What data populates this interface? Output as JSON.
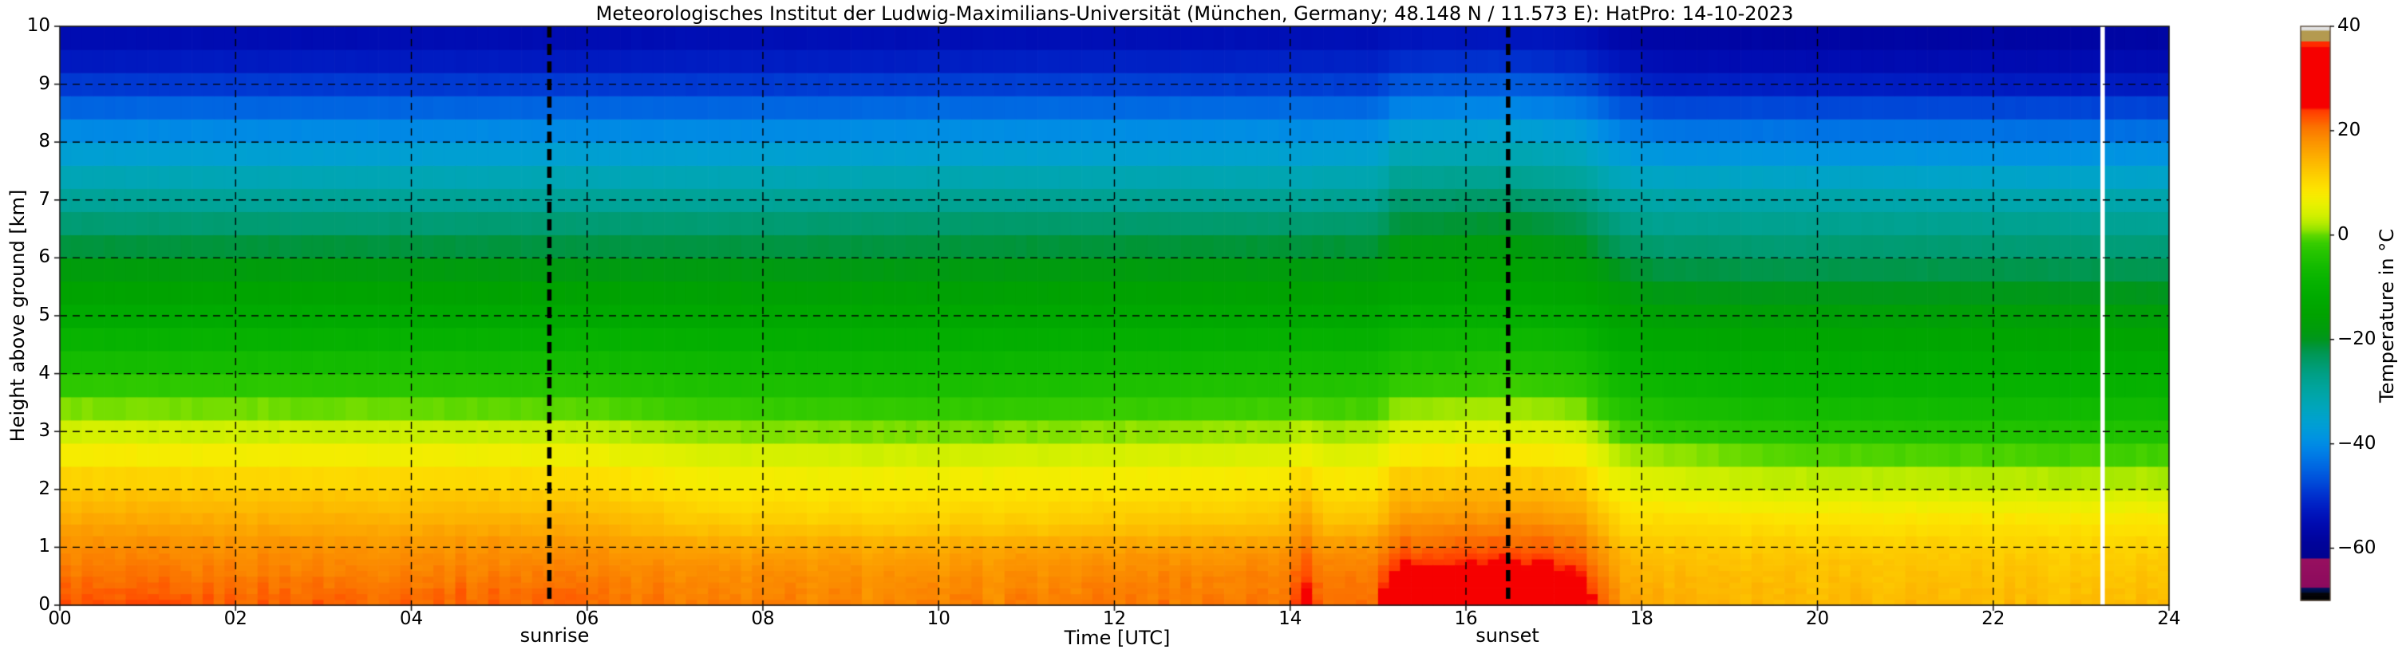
{
  "figure": {
    "title": "Meteorologisches Institut der Ludwig-Maximilians-Universität (München, Germany; 48.148 N / 11.573 E):    HatPro: 14-10-2023"
  },
  "chart_data": {
    "type": "heatmap",
    "title": "Meteorologisches Institut der Ludwig-Maximilians-Universität (München, Germany; 48.148 N / 11.573 E):    HatPro: 14-10-2023",
    "xlabel": "Time [UTC]",
    "ylabel": "Height above ground [km]",
    "colorbar_label": "Temperature in  °C",
    "x_range_hours": [
      0,
      24
    ],
    "y_range_km": [
      0,
      10
    ],
    "temp_range_c": [
      -70,
      40
    ],
    "grid_on": true,
    "x_tick_values": [
      0,
      2,
      4,
      6,
      8,
      10,
      12,
      14,
      16,
      18,
      20,
      22,
      24
    ],
    "x_tick_labels": [
      "00",
      "02",
      "04",
      "06",
      "08",
      "10",
      "12",
      "14",
      "16",
      "18",
      "20",
      "22",
      "24"
    ],
    "y_tick_values": [
      0,
      1,
      2,
      3,
      4,
      5,
      6,
      7,
      8,
      9,
      10
    ],
    "y_tick_labels": [
      "0",
      "1",
      "2",
      "3",
      "4",
      "5",
      "6",
      "7",
      "8",
      "9",
      "10"
    ],
    "cbar_tick_values": [
      40,
      20,
      0,
      -20,
      -40,
      -60
    ],
    "cbar_tick_labels": [
      "40",
      "20",
      "0",
      "−20",
      "−40",
      "−60"
    ],
    "annotations": {
      "sunrise": {
        "label": "sunrise",
        "time_utc": 5.57
      },
      "sunset": {
        "label": "sunset",
        "time_utc": 16.48
      }
    },
    "missing_data_gap": {
      "t_start": 23.22,
      "t_end": 23.27
    },
    "colors": {
      "background": "#ffffff",
      "gridline": "#000000",
      "annotation_line": "#000000",
      "plot_spine": "#1a1a1a",
      "colorbar_border": "#5a4c3e",
      "gap_color": "#ffffff"
    },
    "colormap_stops": [
      [
        -70,
        "#000000"
      ],
      [
        -68.6,
        "#05050a"
      ],
      [
        -68.3,
        "#001040"
      ],
      [
        -67.6,
        "#001060"
      ],
      [
        -67.4,
        "#8c0a5e"
      ],
      [
        -62.0,
        "#97105f"
      ],
      [
        -61.8,
        "#000290"
      ],
      [
        -59,
        "#00039a"
      ],
      [
        -57,
        "#0006a6"
      ],
      [
        -55,
        "#000cb2"
      ],
      [
        -53,
        "#0017be"
      ],
      [
        -51,
        "#0026c8"
      ],
      [
        -49,
        "#0039d2"
      ],
      [
        -47,
        "#004eda"
      ],
      [
        -45,
        "#0061e0"
      ],
      [
        -43,
        "#0073e4"
      ],
      [
        -41,
        "#0084e6"
      ],
      [
        -39,
        "#0092e2"
      ],
      [
        -37,
        "#009cd8"
      ],
      [
        -35,
        "#00a2cc"
      ],
      [
        -33,
        "#00a5bc"
      ],
      [
        -31,
        "#00a5ac"
      ],
      [
        -29,
        "#00a49c"
      ],
      [
        -27,
        "#00a08a"
      ],
      [
        -25,
        "#009c74"
      ],
      [
        -23,
        "#00985a"
      ],
      [
        -21.5,
        "#009540"
      ],
      [
        -20,
        "#00961e"
      ],
      [
        -18,
        "#009c0c"
      ],
      [
        -15,
        "#00a300"
      ],
      [
        -12,
        "#00aa00"
      ],
      [
        -9,
        "#06b200"
      ],
      [
        -6,
        "#13bb00"
      ],
      [
        -3,
        "#28c600"
      ],
      [
        -1.5,
        "#38cd00"
      ],
      [
        0,
        "#5cd800"
      ],
      [
        1,
        "#8ee300"
      ],
      [
        2.5,
        "#b9ec00"
      ],
      [
        4,
        "#d4f000"
      ],
      [
        6,
        "#e9f000"
      ],
      [
        7.5,
        "#f6ec00"
      ],
      [
        9,
        "#fde300"
      ],
      [
        11,
        "#fdd300"
      ],
      [
        13,
        "#fdc100"
      ],
      [
        15,
        "#fdaf00"
      ],
      [
        17,
        "#fc9c00"
      ],
      [
        19,
        "#fb8800"
      ],
      [
        21,
        "#fb6f00"
      ],
      [
        22,
        "#fe5c00"
      ],
      [
        22.8,
        "#ff4f00"
      ],
      [
        24,
        "#ff3a00"
      ],
      [
        24.5,
        "#f60000"
      ],
      [
        36,
        "#f60000"
      ],
      [
        36.2,
        "#ff2a00"
      ],
      [
        37.1,
        "#ff2a00"
      ],
      [
        37.2,
        "#b49a50"
      ],
      [
        39.2,
        "#b49a50"
      ],
      [
        39.3,
        "#dcdcdc"
      ],
      [
        40,
        "#e6e6e6"
      ]
    ],
    "height_levels_km": [
      0,
      0.25,
      0.5,
      0.75,
      1,
      1.25,
      1.5,
      2,
      2.5,
      3,
      3.5,
      4,
      4.5,
      5,
      5.5,
      6,
      6.5,
      7,
      7.5,
      8,
      8.5,
      9,
      9.5,
      10
    ],
    "time_profiles": [
      {
        "t": 0.0,
        "temps_c": [
          22.5,
          21.5,
          20.5,
          19.5,
          18.5,
          17,
          15.5,
          12.5,
          8.5,
          4,
          0,
          -4,
          -8,
          -12,
          -15.5,
          -19.5,
          -24,
          -28.5,
          -33,
          -38,
          -43.5,
          -49,
          -53.5,
          -56
        ]
      },
      {
        "t": 3.0,
        "temps_c": [
          22,
          21,
          20,
          19,
          18,
          16.5,
          15,
          12,
          8,
          3.5,
          -0.5,
          -4.5,
          -8.5,
          -12,
          -15.5,
          -19.5,
          -24,
          -28.5,
          -33,
          -38,
          -43.5,
          -49,
          -53.5,
          -56
        ]
      },
      {
        "t": 6.0,
        "temps_c": [
          21.5,
          21,
          20,
          19,
          18,
          16,
          14.5,
          11.5,
          7.5,
          3,
          -1,
          -5,
          -8.5,
          -12.5,
          -16,
          -20,
          -24,
          -28.5,
          -33,
          -38,
          -43.5,
          -49,
          -53.5,
          -56
        ]
      },
      {
        "t": 7.5,
        "temps_c": [
          19.5,
          19,
          18.5,
          17.5,
          16,
          13.5,
          11.5,
          8.5,
          5,
          1,
          -2.5,
          -6,
          -9.5,
          -13,
          -16.5,
          -20,
          -24,
          -28.5,
          -33,
          -38,
          -43.5,
          -49,
          -53,
          -55.5
        ]
      },
      {
        "t": 10.0,
        "temps_c": [
          19,
          18.5,
          18,
          17,
          15.5,
          13,
          11,
          8.5,
          4.5,
          0.5,
          -3,
          -6.5,
          -10,
          -13,
          -16.5,
          -20,
          -23.5,
          -28,
          -32.5,
          -37.5,
          -43,
          -48.5,
          -53,
          -55.5
        ]
      },
      {
        "t": 12.0,
        "temps_c": [
          20,
          19.5,
          19,
          18,
          16.5,
          14,
          12,
          9,
          5,
          1,
          -2.5,
          -6,
          -9.5,
          -13,
          -16,
          -19.5,
          -23.5,
          -28,
          -32.5,
          -37.5,
          -43,
          -48.5,
          -52.5,
          -55.5
        ]
      },
      {
        "t": 13.9,
        "temps_c": [
          20.5,
          20,
          19.5,
          18.5,
          17,
          14.5,
          12.5,
          9.5,
          5.5,
          1.5,
          -2,
          -5.5,
          -9,
          -12.5,
          -16,
          -19.5,
          -23.5,
          -28,
          -32.5,
          -37.5,
          -43,
          -48.5,
          -52.5,
          -55.5
        ]
      },
      {
        "t": 14.15,
        "temps_c": [
          27.5,
          25.5,
          23.5,
          22,
          20.5,
          19,
          17,
          13,
          8,
          3,
          -1.5,
          -5,
          -8.5,
          -12.5,
          -16,
          -19.5,
          -24,
          -28.5,
          -33,
          -38,
          -43,
          -48.5,
          -52.5,
          -55.5
        ]
      },
      {
        "t": 14.4,
        "temps_c": [
          21,
          20.5,
          20,
          19,
          17.5,
          15,
          12.5,
          9.5,
          5.5,
          1.5,
          -2,
          -5.5,
          -9,
          -12.5,
          -16,
          -19.5,
          -23.5,
          -28,
          -32.5,
          -37.5,
          -43,
          -48.5,
          -52.5,
          -55.5
        ]
      },
      {
        "t": 15.0,
        "temps_c": [
          21.5,
          21,
          20.5,
          19.5,
          18,
          15.5,
          13,
          10,
          6,
          2,
          -1.5,
          -5,
          -9,
          -12.5,
          -16,
          -19.5,
          -23.5,
          -28,
          -32.5,
          -37.5,
          -43,
          -48.5,
          -52.5,
          -55.5
        ]
      },
      {
        "t": 15.2,
        "temps_c": [
          31,
          29.5,
          27,
          24,
          21.5,
          19.5,
          17.5,
          13.5,
          9,
          4.5,
          0.5,
          -3.5,
          -7,
          -10.5,
          -14,
          -17,
          -20.5,
          -24.5,
          -29,
          -34,
          -40,
          -46,
          -51.5,
          -54.5
        ]
      },
      {
        "t": 16.5,
        "temps_c": [
          32,
          30,
          27.5,
          24.5,
          22,
          20,
          18,
          14,
          9.5,
          5,
          1,
          -3,
          -6.5,
          -10,
          -13.5,
          -16.5,
          -20,
          -24,
          -28.5,
          -33.5,
          -39.5,
          -45.5,
          -51,
          -54.5
        ]
      },
      {
        "t": 17.3,
        "temps_c": [
          30,
          28,
          25.5,
          23,
          21,
          19,
          17,
          13,
          8.5,
          4,
          0,
          -4,
          -7.5,
          -11,
          -14.5,
          -18,
          -21.5,
          -25.5,
          -30,
          -35,
          -41,
          -47,
          -52,
          -55
        ]
      },
      {
        "t": 17.75,
        "temps_c": [
          17,
          16.5,
          16,
          15,
          13.5,
          11.5,
          10,
          7,
          3,
          -1,
          -4.5,
          -8,
          -11.5,
          -15,
          -18,
          -21.5,
          -25.5,
          -29.5,
          -34,
          -39,
          -45,
          -50.5,
          -54.5,
          -57.5
        ]
      },
      {
        "t": 18.2,
        "temps_c": [
          15.5,
          15,
          14.5,
          13.5,
          12.5,
          11,
          9.5,
          6,
          2,
          -2,
          -5.5,
          -9,
          -12.5,
          -16,
          -19.5,
          -23,
          -27,
          -30.5,
          -35,
          -40.5,
          -46.5,
          -52,
          -55.5,
          -58
        ]
      },
      {
        "t": 19.5,
        "temps_c": [
          14.5,
          14,
          13.5,
          13,
          12,
          10.5,
          9,
          4.5,
          0.5,
          -3.5,
          -6.5,
          -10,
          -13,
          -16.5,
          -20,
          -23.5,
          -27,
          -30.5,
          -35,
          -40.5,
          -46.5,
          -52,
          -56,
          -58.5
        ]
      },
      {
        "t": 22.0,
        "temps_c": [
          14,
          13.5,
          13,
          12.5,
          11.5,
          10,
          8.5,
          4,
          0,
          -4,
          -7,
          -10.5,
          -13.5,
          -16.5,
          -20,
          -23.5,
          -27,
          -31,
          -35.5,
          -41,
          -46.5,
          -52.5,
          -56,
          -58.5
        ]
      },
      {
        "t": 24.0,
        "temps_c": [
          13.5,
          13,
          12.5,
          12,
          11,
          9.5,
          8,
          3.5,
          -0.5,
          -4.5,
          -7.5,
          -10.5,
          -14,
          -17,
          -20.5,
          -24,
          -27.5,
          -31,
          -35.5,
          -41,
          -47,
          -52.5,
          -56,
          -58.5
        ]
      }
    ],
    "grid": {
      "col_dt_hours": 0.125,
      "row_segments_km": [
        [
          0,
          1,
          0.1
        ],
        [
          1,
          2,
          0.2
        ],
        [
          2,
          10,
          0.4
        ]
      ]
    }
  }
}
